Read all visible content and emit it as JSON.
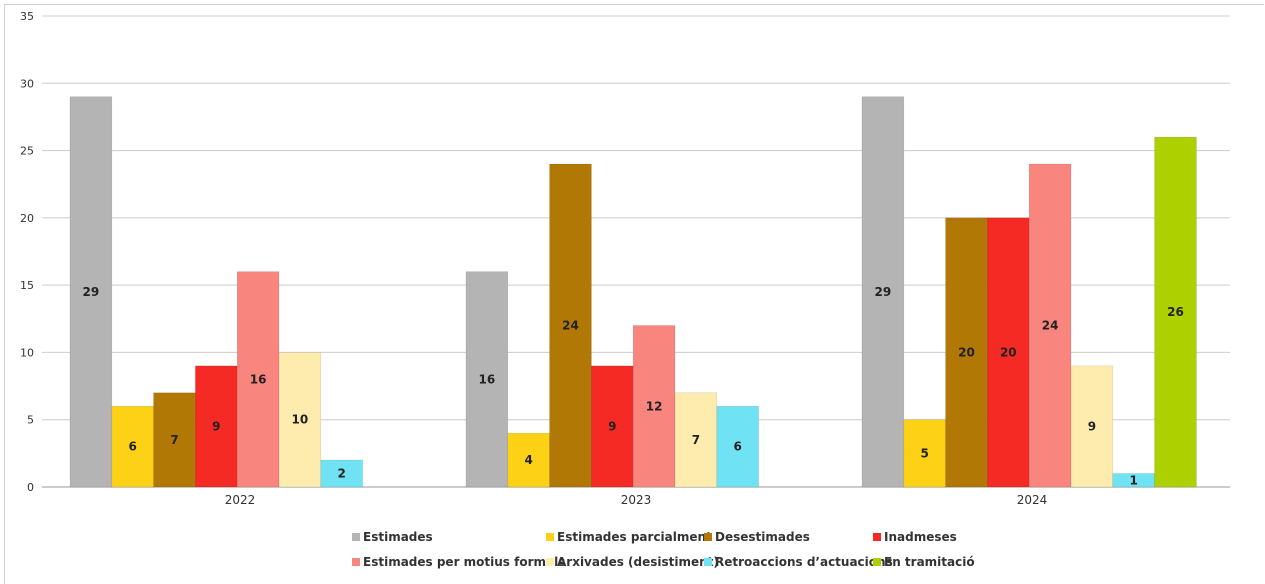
{
  "chart_data": {
    "type": "bar",
    "title": "",
    "xlabel": "",
    "ylabel": "",
    "categories": [
      "2022",
      "2023",
      "2024"
    ],
    "ylim": [
      0,
      35
    ],
    "yticks": [
      0,
      5,
      10,
      15,
      20,
      25,
      30,
      35
    ],
    "grid": true,
    "legend_position": "bottom",
    "data_labels": true,
    "series": [
      {
        "name": "Estimades",
        "color": "#b4b4b4",
        "values": [
          29,
          16,
          29
        ]
      },
      {
        "name": "Estimades parcialment",
        "color": "#fdd116",
        "values": [
          6,
          4,
          5
        ]
      },
      {
        "name": "Desestimades",
        "color": "#b27805",
        "values": [
          7,
          24,
          20
        ]
      },
      {
        "name": "Inadmeses",
        "color": "#f52a25",
        "values": [
          9,
          9,
          20
        ]
      },
      {
        "name": "Estimades per motius formals",
        "color": "#f9857f",
        "values": [
          16,
          12,
          24
        ]
      },
      {
        "name": "Arxivades (desistiment)",
        "color": "#feecae",
        "values": [
          10,
          7,
          9
        ]
      },
      {
        "name": "Retroaccions d’actuacions",
        "color": "#6fe3f4",
        "values": [
          2,
          6,
          1
        ]
      },
      {
        "name": "En tramitació",
        "color": "#acd000",
        "values": [
          null,
          null,
          26
        ]
      }
    ]
  }
}
